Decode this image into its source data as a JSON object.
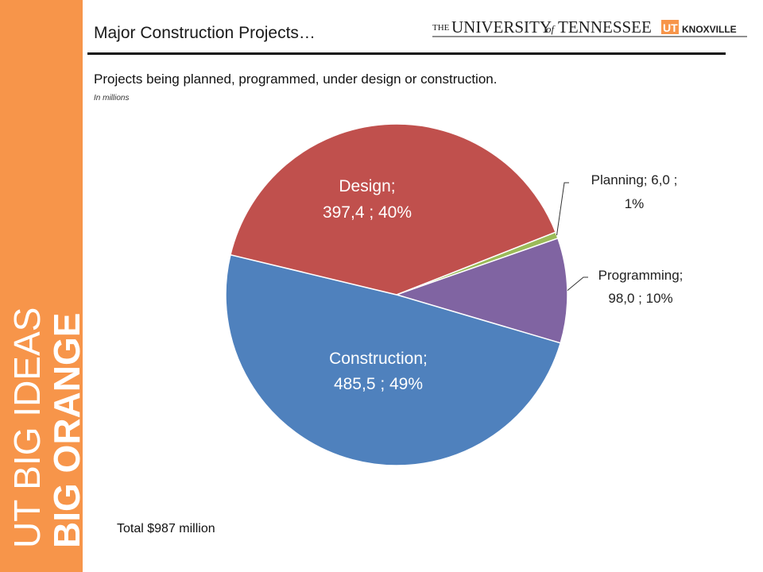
{
  "header": {
    "title": "Major Construction Projects…",
    "subtitle": "Projects being planned, programmed, under design or construction.",
    "units_note": "In millions",
    "logo_text": "THE UNIVERSITY of TENNESSEE UT KNOXVILLE"
  },
  "sidebar": {
    "brand_text": "BIG ORANGE BIG IDEAS"
  },
  "footer": {
    "total": "Total $987 million"
  },
  "colors": {
    "sidebar": "#F7954A",
    "planning": "#9BBB59",
    "programming": "#8064A2",
    "construction": "#4F81BD",
    "design": "#C0504D"
  },
  "chart_data": {
    "type": "pie",
    "categories": [
      "Planning",
      "Programming",
      "Construction",
      "Design"
    ],
    "values": [
      6.0,
      98.0,
      485.5,
      397.4
    ],
    "percent_labels": [
      "1%",
      "10%",
      "49%",
      "40%"
    ],
    "value_labels": [
      "6,0",
      "98,0",
      "485,5",
      "397,4"
    ],
    "data_labels": [
      {
        "line1": "Planning;  6,0 ;",
        "line2": "1%"
      },
      {
        "line1": "Programming;",
        "line2": "98,0 ; 10%"
      },
      {
        "line1": "Construction;",
        "line2": "485,5 ; 49%"
      },
      {
        "line1": "Design;",
        "line2": "397,4 ; 40%"
      }
    ],
    "legend": "none"
  }
}
